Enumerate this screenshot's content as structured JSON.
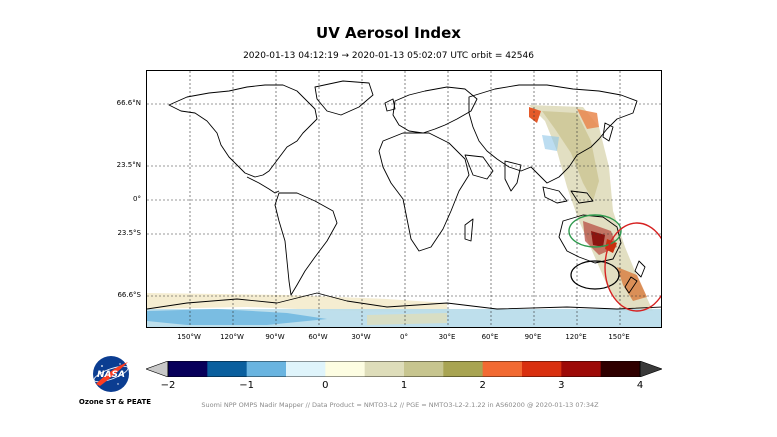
{
  "header": {
    "title": "UV Aerosol Index",
    "subtitle": "2020-01-13 04:12:19 → 2020-01-13 05:02:07 UTC   orbit = 42546"
  },
  "map": {
    "lat_labels": [
      "66.6°N",
      "23.5°N",
      "0°",
      "23.5°S",
      "66.6°S"
    ],
    "lon_labels": [
      "150°W",
      "120°W",
      "90°W",
      "60°W",
      "30°W",
      "0°",
      "30°E",
      "60°E",
      "90°E",
      "120°E",
      "150°E"
    ],
    "highlight_colors": {
      "green": "#2e9a4e",
      "black": "#000000",
      "red": "#d62020"
    }
  },
  "colorbar": {
    "ticks": [
      "−2",
      "−1",
      "0",
      "1",
      "2",
      "3",
      "4"
    ],
    "colors": [
      "#08005a",
      "#0a5f9e",
      "#69b4e0",
      "#dff4fb",
      "#fdfde2",
      "#deddba",
      "#c7c58f",
      "#a8a452",
      "#f26a32",
      "#d9300f",
      "#9d0a08",
      "#2f0000"
    ]
  },
  "logo": {
    "name": "nasa-logo",
    "org": "Ozone ST & PEATE"
  },
  "footer": {
    "text": "Suomi NPP OMPS Nadir Mapper  //  Data Product = NMTO3-L2  //  PGE = NMTO3-L2-2.1.22 in AS60200 @ 2020-01-13 07:34Z"
  }
}
